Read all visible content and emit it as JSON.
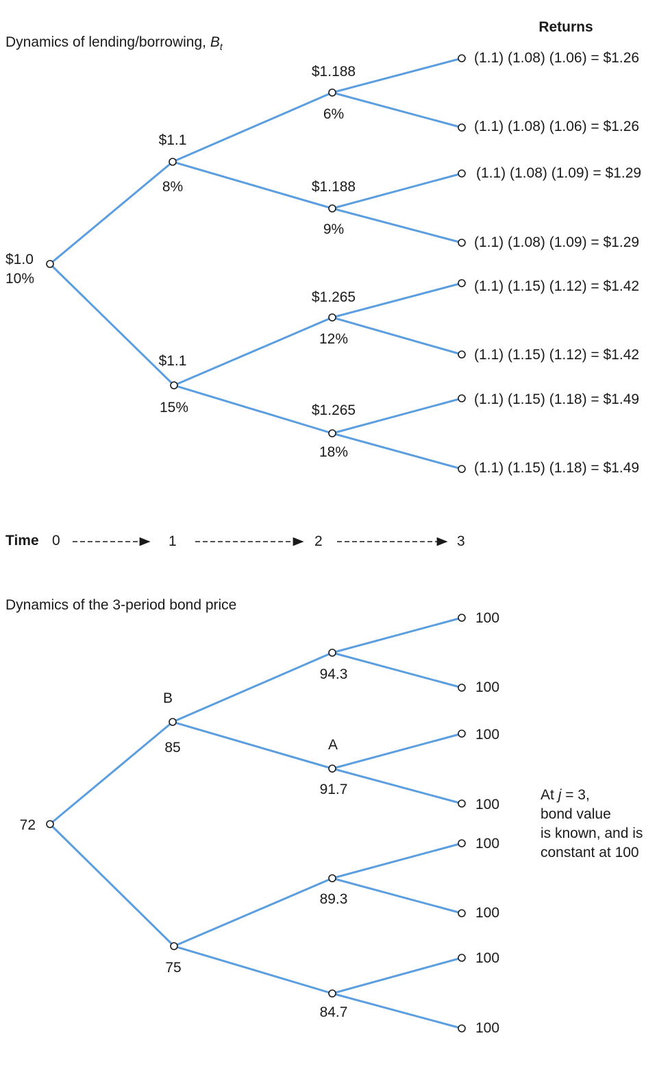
{
  "top": {
    "title": "Dynamics of lending/borrowing, ",
    "title_var": "B",
    "title_sub": "t",
    "returns_header": "Returns",
    "root": {
      "value": "$1.0",
      "rate": "10%"
    },
    "t1": [
      {
        "value": "$1.1",
        "rate": "8%"
      },
      {
        "value": "$1.1",
        "rate": "15%"
      }
    ],
    "t2": [
      {
        "value": "$1.188",
        "rate": "6%"
      },
      {
        "value": "$1.188",
        "rate": "9%"
      },
      {
        "value": "$1.265",
        "rate": "12%"
      },
      {
        "value": "$1.265",
        "rate": "18%"
      }
    ],
    "returns": [
      "(1.1) (1.08) (1.06) = $1.26",
      "(1.1) (1.08) (1.06) = $1.26",
      "(1.1) (1.08) (1.09) = $1.29",
      "(1.1) (1.08) (1.09) = $1.29",
      "(1.1) (1.15) (1.12) = $1.42",
      "(1.1) (1.15) (1.12) = $1.42",
      "(1.1) (1.15) (1.18) = $1.49",
      "(1.1) (1.15) (1.18) = $1.49"
    ]
  },
  "time_axis": {
    "label": "Time",
    "ticks": [
      "0",
      "1",
      "2",
      "3"
    ]
  },
  "bottom": {
    "title": "Dynamics of the 3-period bond price",
    "root": "72",
    "t1": [
      {
        "value": "85",
        "tag": "B"
      },
      {
        "value": "75",
        "tag": ""
      }
    ],
    "t2": [
      {
        "value": "94.3",
        "tag": ""
      },
      {
        "value": "91.7",
        "tag": "A"
      },
      {
        "value": "89.3",
        "tag": ""
      },
      {
        "value": "84.7",
        "tag": ""
      }
    ],
    "leaves": [
      "100",
      "100",
      "100",
      "100",
      "100",
      "100",
      "100",
      "100"
    ],
    "note": {
      "line1_pre": "At ",
      "line1_var": "j",
      "line1_post": " = 3,",
      "line2": "bond value",
      "line3": "is known, and is",
      "line4": "constant at 100"
    }
  },
  "colors": {
    "edge": "#5b9ee0",
    "text": "#1a1a1a"
  }
}
